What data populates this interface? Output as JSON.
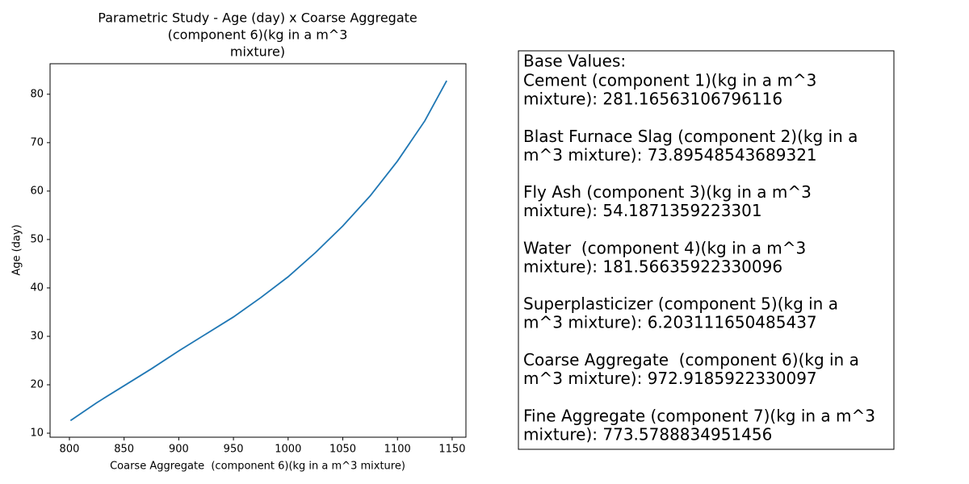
{
  "chart_data": {
    "type": "line",
    "title": [
      "Parametric Study - Age (day) x Coarse Aggregate",
      "(component 6)(kg in a m^3",
      "mixture)"
    ],
    "xlabel": "Coarse Aggregate  (component 6)(kg in a m^3 mixture)",
    "ylabel": "Age (day)",
    "x": [
      801,
      825,
      850,
      875,
      900,
      925,
      950,
      975,
      1000,
      1025,
      1050,
      1075,
      1100,
      1125,
      1145
    ],
    "series": [
      {
        "color": "#1f77b4",
        "values": [
          12.6,
          16.3,
          19.8,
          23.3,
          27,
          30.5,
          34,
          38,
          42.3,
          47.3,
          52.8,
          59,
          66.2,
          74.5,
          82.8
        ]
      }
    ],
    "xlim": [
      782.3,
      1162.6
    ],
    "ylim": [
      9.17,
      86.3
    ],
    "xticks": [
      800,
      850,
      900,
      950,
      1000,
      1050,
      1100,
      1150
    ],
    "yticks": [
      10,
      20,
      30,
      40,
      50,
      60,
      70,
      80
    ],
    "annotation": {
      "title": "Base Values:",
      "entries": [
        [
          "Cement (component 1)(kg in a m^3",
          "mixture): 281.16563106796116"
        ],
        [
          "Blast Furnace Slag (component 2)(kg in a",
          "m^3 mixture): 73.89548543689321"
        ],
        [
          "Fly Ash (component 3)(kg in a m^3",
          "mixture): 54.1871359223301"
        ],
        [
          "Water  (component 4)(kg in a m^3",
          "mixture): 181.56635922330096"
        ],
        [
          "Superplasticizer (component 5)(kg in a",
          "m^3 mixture): 6.203111650485437"
        ],
        [
          "Coarse Aggregate  (component 6)(kg in a",
          "m^3 mixture): 972.9185922330097"
        ],
        [
          "Fine Aggregate (component 7)(kg in a m^3",
          "mixture): 773.5788834951456"
        ]
      ]
    }
  }
}
